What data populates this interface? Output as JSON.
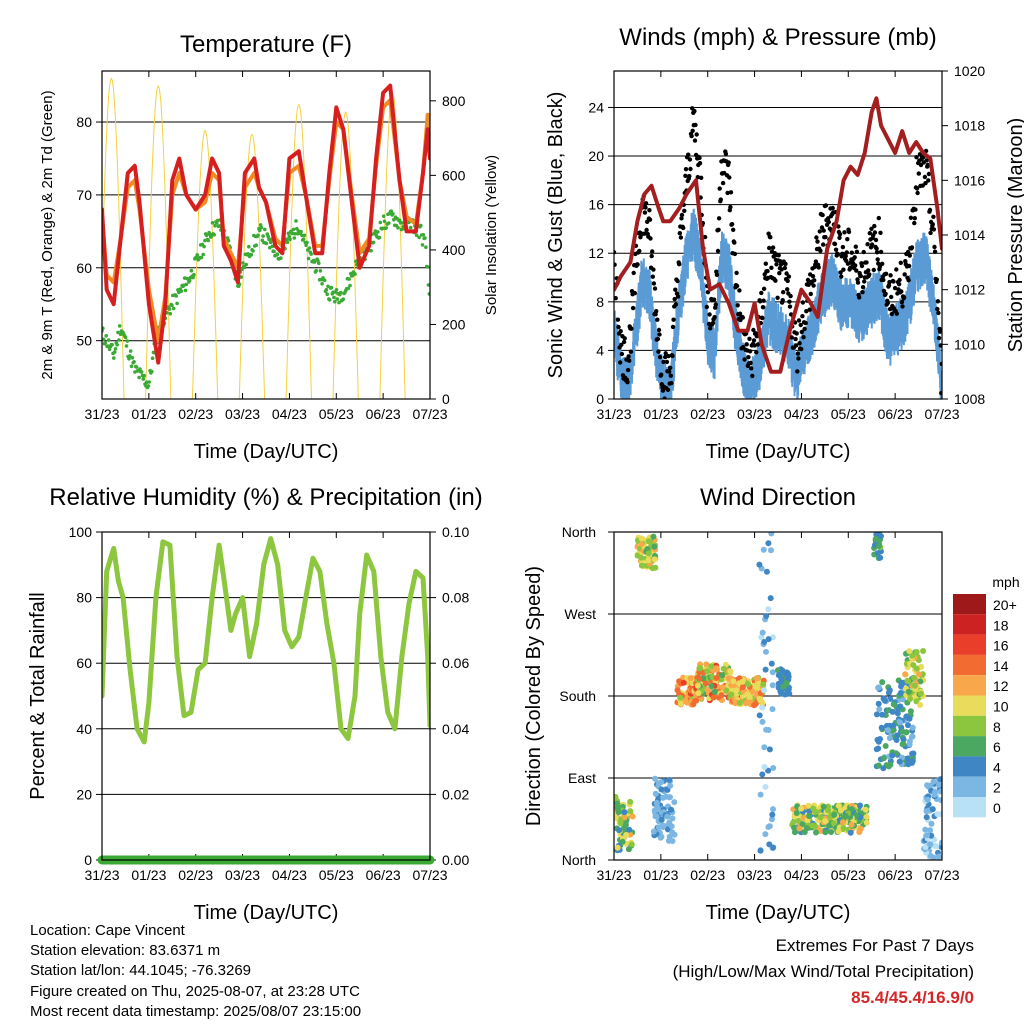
{
  "chart_data": [
    {
      "type": "line",
      "title": "Temperature (F)",
      "xlabel": "Time (Day/UTC)",
      "ylabel": "2m & 9m T (Red, Orange) & 2m Td (Green)",
      "y2label": "Solar Insolation (Yellow)",
      "x_ticks": [
        "31/23",
        "01/23",
        "02/23",
        "03/23",
        "04/23",
        "05/23",
        "06/23",
        "07/23"
      ],
      "xlim": [
        0,
        7
      ],
      "ylim": [
        42,
        87
      ],
      "y_ticks": [
        50,
        60,
        70,
        80
      ],
      "y2lim": [
        0,
        880
      ],
      "y2_ticks": [
        0,
        200,
        400,
        600,
        800
      ],
      "grid": "horizontal",
      "series": [
        {
          "name": "2m T",
          "color": "#d62020",
          "axis": "left",
          "x": [
            0,
            0.1,
            0.25,
            0.4,
            0.55,
            0.7,
            0.8,
            1.0,
            1.2,
            1.35,
            1.5,
            1.65,
            1.8,
            2.0,
            2.2,
            2.35,
            2.5,
            2.6,
            2.75,
            2.9,
            3.05,
            3.25,
            3.35,
            3.5,
            3.7,
            3.85,
            4.0,
            4.2,
            4.35,
            4.55,
            4.7,
            4.85,
            5.0,
            5.15,
            5.35,
            5.5,
            5.7,
            5.85,
            6.0,
            6.15,
            6.35,
            6.5,
            6.7,
            6.85,
            6.95,
            7.0
          ],
          "y": [
            68,
            57,
            55,
            64,
            73,
            74,
            69,
            55,
            47,
            55,
            72,
            75,
            70,
            68,
            70,
            75,
            73,
            63,
            61,
            58,
            73,
            75,
            71,
            69,
            63,
            62,
            75,
            76,
            70,
            62,
            62,
            73,
            82,
            79,
            68,
            60,
            63,
            75,
            84,
            85,
            72,
            65,
            65,
            73,
            79,
            75
          ]
        },
        {
          "name": "9m T",
          "color": "#f08a24",
          "axis": "left",
          "x": [
            0,
            0.1,
            0.25,
            0.4,
            0.55,
            0.7,
            0.8,
            1.0,
            1.2,
            1.35,
            1.5,
            1.65,
            1.8,
            2.0,
            2.2,
            2.35,
            2.5,
            2.6,
            2.75,
            2.9,
            3.05,
            3.25,
            3.35,
            3.5,
            3.7,
            3.85,
            4.0,
            4.2,
            4.35,
            4.55,
            4.7,
            4.85,
            5.0,
            5.15,
            5.35,
            5.5,
            5.7,
            5.85,
            6.0,
            6.15,
            6.35,
            6.5,
            6.7,
            6.85,
            6.95,
            7.0
          ],
          "y": [
            67,
            59,
            58,
            64,
            71,
            72,
            68,
            57,
            50,
            56,
            70,
            73,
            70,
            68,
            69,
            73,
            72,
            64,
            62,
            60,
            71,
            73,
            71,
            69,
            64,
            63,
            73,
            74,
            70,
            63,
            63,
            72,
            80,
            79,
            69,
            62,
            64,
            74,
            82,
            83,
            72,
            67,
            66,
            73,
            81,
            76
          ]
        },
        {
          "name": "2m Td",
          "color": "#3aaa35",
          "axis": "left",
          "x": [
            0,
            0.1,
            0.25,
            0.4,
            0.55,
            0.7,
            0.85,
            1.0,
            1.15,
            1.3,
            1.5,
            1.7,
            1.9,
            2.1,
            2.3,
            2.5,
            2.7,
            2.9,
            3.0,
            3.2,
            3.4,
            3.6,
            3.8,
            4.0,
            4.2,
            4.4,
            4.6,
            4.8,
            5.0,
            5.2,
            5.4,
            5.6,
            5.8,
            6.0,
            6.2,
            6.4,
            6.6,
            6.8,
            6.9,
            7.0
          ],
          "y": [
            51,
            50,
            48,
            52,
            49,
            46,
            45,
            44,
            50,
            53,
            55,
            57,
            59,
            62,
            65,
            66,
            63,
            58,
            60,
            63,
            65,
            63,
            62,
            64,
            66,
            62,
            60,
            57,
            56,
            57,
            60,
            62,
            64,
            66,
            67,
            66,
            66,
            65,
            63,
            55
          ]
        },
        {
          "name": "Solar Insolation",
          "color": "#f4d03f",
          "axis": "right",
          "peak_x": [
            0.2,
            1.2,
            2.2,
            3.2,
            4.2,
            5.2,
            6.2
          ],
          "peak_y": [
            860,
            840,
            720,
            710,
            790,
            770,
            820
          ]
        }
      ]
    },
    {
      "type": "line",
      "title": "Winds (mph) & Pressure (mb)",
      "xlabel": "Time (Day/UTC)",
      "ylabel": "Sonic Wind & Gust (Blue, Black)",
      "y2label": "Station Pressure (Maroon)",
      "x_ticks": [
        "31/23",
        "01/23",
        "02/23",
        "03/23",
        "04/23",
        "05/23",
        "06/23",
        "07/23"
      ],
      "xlim": [
        0,
        7
      ],
      "ylim": [
        0,
        27
      ],
      "y_ticks": [
        0,
        4,
        8,
        12,
        16,
        20,
        24
      ],
      "y2lim": [
        1008,
        1020
      ],
      "y2_ticks": [
        1008,
        1010,
        1012,
        1014,
        1016,
        1018,
        1020
      ],
      "grid": "horizontal",
      "series": [
        {
          "name": "Gust",
          "color": "#000000",
          "axis": "left",
          "x": [
            0,
            0.15,
            0.3,
            0.45,
            0.6,
            0.75,
            0.9,
            1.05,
            1.2,
            1.4,
            1.55,
            1.7,
            1.85,
            2.0,
            2.15,
            2.3,
            2.45,
            2.6,
            2.75,
            2.9,
            3.1,
            3.3,
            3.5,
            3.7,
            3.9,
            4.1,
            4.25,
            4.45,
            4.65,
            4.85,
            5.05,
            5.25,
            5.45,
            5.65,
            5.85,
            6.05,
            6.25,
            6.45,
            6.65,
            6.85,
            7.0
          ],
          "y": [
            12,
            4,
            3,
            10,
            16,
            14,
            7,
            2,
            2,
            12,
            18,
            23,
            18,
            8,
            7,
            20,
            18,
            10,
            5,
            3,
            6,
            12,
            10,
            9,
            4,
            8,
            10,
            14,
            15,
            12,
            12,
            10,
            12,
            13,
            8,
            9,
            10,
            18,
            19,
            12,
            1
          ]
        },
        {
          "name": "Wind",
          "color": "#5b9bd5",
          "axis": "left",
          "x": [
            0,
            0.15,
            0.3,
            0.45,
            0.6,
            0.75,
            0.9,
            1.05,
            1.2,
            1.4,
            1.55,
            1.7,
            1.85,
            2.0,
            2.15,
            2.3,
            2.45,
            2.6,
            2.75,
            2.9,
            3.1,
            3.3,
            3.5,
            3.7,
            3.9,
            4.1,
            4.25,
            4.45,
            4.65,
            4.85,
            5.05,
            5.25,
            5.45,
            5.65,
            5.85,
            6.05,
            6.25,
            6.45,
            6.65,
            6.85,
            7.0
          ],
          "y": [
            6,
            2,
            1,
            5,
            10,
            9,
            4,
            1,
            1,
            8,
            12,
            14,
            11,
            5,
            4,
            12,
            11,
            6,
            3,
            1,
            3,
            7,
            6,
            5,
            2,
            5,
            6,
            9,
            10,
            8,
            8,
            7,
            8,
            9,
            5,
            6,
            7,
            11,
            12,
            7,
            0
          ]
        },
        {
          "name": "Station Pressure",
          "color": "#a31f1f",
          "axis": "right",
          "x": [
            0,
            0.15,
            0.35,
            0.5,
            0.65,
            0.8,
            0.95,
            1.05,
            1.2,
            1.4,
            1.55,
            1.75,
            1.9,
            2.05,
            2.25,
            2.45,
            2.65,
            2.85,
            3.0,
            3.15,
            3.35,
            3.55,
            3.75,
            4.0,
            4.2,
            4.35,
            4.55,
            4.75,
            4.9,
            5.05,
            5.2,
            5.35,
            5.5,
            5.6,
            5.7,
            5.85,
            6.0,
            6.15,
            6.3,
            6.45,
            6.6,
            6.75,
            6.9,
            7.0
          ],
          "x_comment": "",
          "y": [
            1012,
            1012.5,
            1013,
            1014.5,
            1015.5,
            1015.8,
            1015,
            1014.5,
            1014.5,
            1015,
            1015.5,
            1016,
            1013.5,
            1012,
            1012.2,
            1011.5,
            1010.5,
            1010.5,
            1011.5,
            1010,
            1009,
            1009,
            1010.5,
            1012,
            1011.5,
            1011,
            1013.5,
            1014.5,
            1016,
            1016.5,
            1016.2,
            1017,
            1018.5,
            1019,
            1018,
            1017.5,
            1017,
            1017.8,
            1017,
            1017.4,
            1017,
            1016.8,
            1015,
            1013.5
          ]
        }
      ]
    },
    {
      "type": "line",
      "title": "Relative Humidity (%) & Precipitation (in)",
      "xlabel": "Time (Day/UTC)",
      "ylabel": "Percent & Total Rainfall",
      "x_ticks": [
        "31/23",
        "01/23",
        "02/23",
        "03/23",
        "04/23",
        "05/23",
        "06/23",
        "07/23"
      ],
      "xlim": [
        0,
        7
      ],
      "ylim": [
        0,
        100
      ],
      "y_ticks": [
        0,
        20,
        40,
        60,
        80,
        100
      ],
      "y2lim": [
        0,
        0.1
      ],
      "y2_ticks": [
        "0.00",
        "0.02",
        "0.04",
        "0.06",
        "0.08",
        "0.10"
      ],
      "grid": "horizontal",
      "series": [
        {
          "name": "Relative Humidity",
          "color": "#8dc63f",
          "axis": "left",
          "x": [
            0,
            0.1,
            0.25,
            0.35,
            0.45,
            0.6,
            0.75,
            0.9,
            1.0,
            1.15,
            1.3,
            1.45,
            1.6,
            1.75,
            1.9,
            2.05,
            2.2,
            2.35,
            2.5,
            2.6,
            2.75,
            2.85,
            3.0,
            3.15,
            3.3,
            3.45,
            3.6,
            3.75,
            3.9,
            4.05,
            4.2,
            4.35,
            4.5,
            4.65,
            4.8,
            4.95,
            5.1,
            5.25,
            5.4,
            5.5,
            5.65,
            5.8,
            5.95,
            6.1,
            6.25,
            6.4,
            6.55,
            6.7,
            6.85,
            6.95,
            7.0
          ],
          "y": [
            50,
            88,
            95,
            85,
            80,
            58,
            40,
            36,
            48,
            80,
            97,
            96,
            62,
            44,
            45,
            58,
            60,
            80,
            96,
            86,
            70,
            75,
            80,
            62,
            72,
            90,
            98,
            90,
            70,
            65,
            68,
            80,
            92,
            88,
            72,
            60,
            40,
            37,
            50,
            75,
            93,
            88,
            62,
            45,
            40,
            62,
            78,
            88,
            86,
            62,
            41
          ]
        },
        {
          "name": "Total Rainfall",
          "color": "#3aaa35",
          "axis": "right",
          "x": [
            0,
            7
          ],
          "y": [
            0,
            0
          ]
        }
      ]
    },
    {
      "type": "scatter",
      "title": "Wind Direction",
      "xlabel": "Time (Day/UTC)",
      "ylabel": "Direction (Colored By Speed)",
      "x_ticks": [
        "31/23",
        "01/23",
        "02/23",
        "03/23",
        "04/23",
        "05/23",
        "06/23",
        "07/23"
      ],
      "xlim": [
        0,
        7
      ],
      "y_ticks": [
        "North",
        "East",
        "South",
        "West",
        "North"
      ],
      "ylim_degrees": [
        0,
        360
      ],
      "grid": "horizontal",
      "legend": {
        "title": "mph",
        "placement": "right",
        "labels": [
          "20+",
          "18",
          "16",
          "14",
          "12",
          "10",
          "8",
          "6",
          "4",
          "2",
          "0"
        ],
        "colors": [
          "#9e1a1a",
          "#cc2222",
          "#e83e2a",
          "#f26b30",
          "#f8a84a",
          "#e8dc5a",
          "#8cc63f",
          "#4aa860",
          "#3f86c4",
          "#7cb7e3",
          "#b9e1f5"
        ]
      },
      "clusters": [
        {
          "x": [
            0.0,
            0.4
          ],
          "dir": [
            10,
            70
          ],
          "speed": [
            4,
            12
          ]
        },
        {
          "x": [
            0.5,
            0.9
          ],
          "dir": [
            320,
            355
          ],
          "speed": [
            6,
            12
          ]
        },
        {
          "x": [
            0.85,
            1.3
          ],
          "dir": [
            20,
            90
          ],
          "speed": [
            1,
            4
          ]
        },
        {
          "x": [
            1.35,
            1.75
          ],
          "dir": [
            170,
            200
          ],
          "speed": [
            8,
            16
          ]
        },
        {
          "x": [
            1.75,
            2.5
          ],
          "dir": [
            175,
            215
          ],
          "speed": [
            6,
            16
          ]
        },
        {
          "x": [
            2.5,
            3.2
          ],
          "dir": [
            170,
            200
          ],
          "speed": [
            8,
            14
          ]
        },
        {
          "x": [
            3.1,
            3.4
          ],
          "dir": [
            0,
            360
          ],
          "speed": [
            0,
            4
          ]
        },
        {
          "x": [
            3.5,
            3.75
          ],
          "dir": [
            180,
            210
          ],
          "speed": [
            3,
            6
          ]
        },
        {
          "x": [
            3.8,
            5.4
          ],
          "dir": [
            30,
            60
          ],
          "speed": [
            4,
            12
          ]
        },
        {
          "x": [
            5.55,
            5.7
          ],
          "dir": [
            330,
            360
          ],
          "speed": [
            4,
            8
          ]
        },
        {
          "x": [
            5.6,
            6.4
          ],
          "dir": [
            100,
            200
          ],
          "speed": [
            2,
            6
          ]
        },
        {
          "x": [
            6.2,
            6.6
          ],
          "dir": [
            170,
            230
          ],
          "speed": [
            6,
            12
          ]
        },
        {
          "x": [
            6.6,
            7.0
          ],
          "dir": [
            0,
            90
          ],
          "speed": [
            0,
            4
          ]
        }
      ]
    }
  ],
  "station": {
    "location": "Location: Cape Vincent",
    "elevation": "Station elevation: 83.6371 m",
    "latlon": "Station lat/lon: 44.1045; -76.3269",
    "created": "Figure created on Thu, 2025-08-07, at 23:28 UTC",
    "latest": "Most recent data timestamp: 2025/08/07 23:15:00"
  },
  "extremes": {
    "title": "Extremes For Past 7 Days",
    "subtitle": "(High/Low/Max Wind/Total Precipitation)",
    "values": "85.4/45.4/16.9/0"
  }
}
